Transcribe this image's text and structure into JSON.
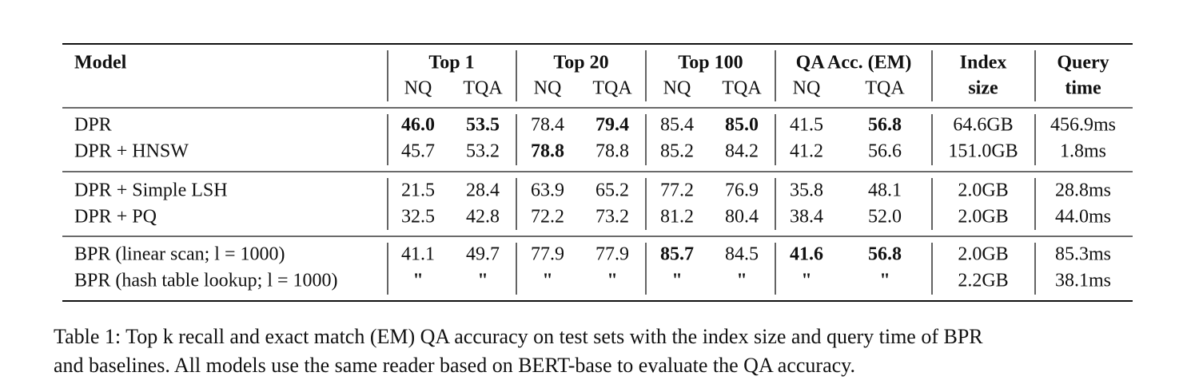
{
  "header": {
    "model": "Model",
    "groups": [
      "Top 1",
      "Top 20",
      "Top 100",
      "QA Acc. (EM)"
    ],
    "subcolumns": [
      "NQ",
      "TQA",
      "NQ",
      "TQA",
      "NQ",
      "TQA",
      "NQ",
      "TQA"
    ],
    "index": [
      "Index",
      "size"
    ],
    "query": [
      "Query",
      "time"
    ]
  },
  "sections": [
    {
      "rows": [
        {
          "model": "DPR",
          "cells": [
            "46.0",
            "53.5",
            "78.4",
            "79.4",
            "85.4",
            "85.0",
            "41.5",
            "56.8"
          ],
          "index": "64.6GB",
          "query": "456.9ms"
        },
        {
          "model": "DPR + HNSW",
          "cells": [
            "45.7",
            "53.2",
            "78.8",
            "78.8",
            "85.2",
            "84.2",
            "41.2",
            "56.6"
          ],
          "index": "151.0GB",
          "query": "1.8ms"
        }
      ]
    },
    {
      "rows": [
        {
          "model": "DPR + Simple LSH",
          "cells": [
            "21.5",
            "28.4",
            "63.9",
            "65.2",
            "77.2",
            "76.9",
            "35.8",
            "48.1"
          ],
          "index": "2.0GB",
          "query": "28.8ms"
        },
        {
          "model": "DPR + PQ",
          "cells": [
            "32.5",
            "42.8",
            "72.2",
            "73.2",
            "81.2",
            "80.4",
            "38.4",
            "52.0"
          ],
          "index": "2.0GB",
          "query": "44.0ms"
        }
      ]
    },
    {
      "rows": [
        {
          "model": "BPR (linear scan; l = 1000)",
          "cells": [
            "41.1",
            "49.7",
            "77.9",
            "77.9",
            "85.7",
            "84.5",
            "41.6",
            "56.8"
          ],
          "index": "2.0GB",
          "query": "85.3ms"
        },
        {
          "model": "BPR (hash table lookup; l = 1000)",
          "cells": [
            "\"",
            "\"",
            "\"",
            "\"",
            "\"",
            "\"",
            "\"",
            "\""
          ],
          "index": "2.2GB",
          "query": "38.1ms"
        }
      ]
    }
  ],
  "caption": [
    "Table 1: Top k recall and exact match (EM) QA accuracy on test sets with the index size and query time of BPR",
    "and baselines. All models use the same reader based on BERT-base to evaluate the QA accuracy."
  ]
}
